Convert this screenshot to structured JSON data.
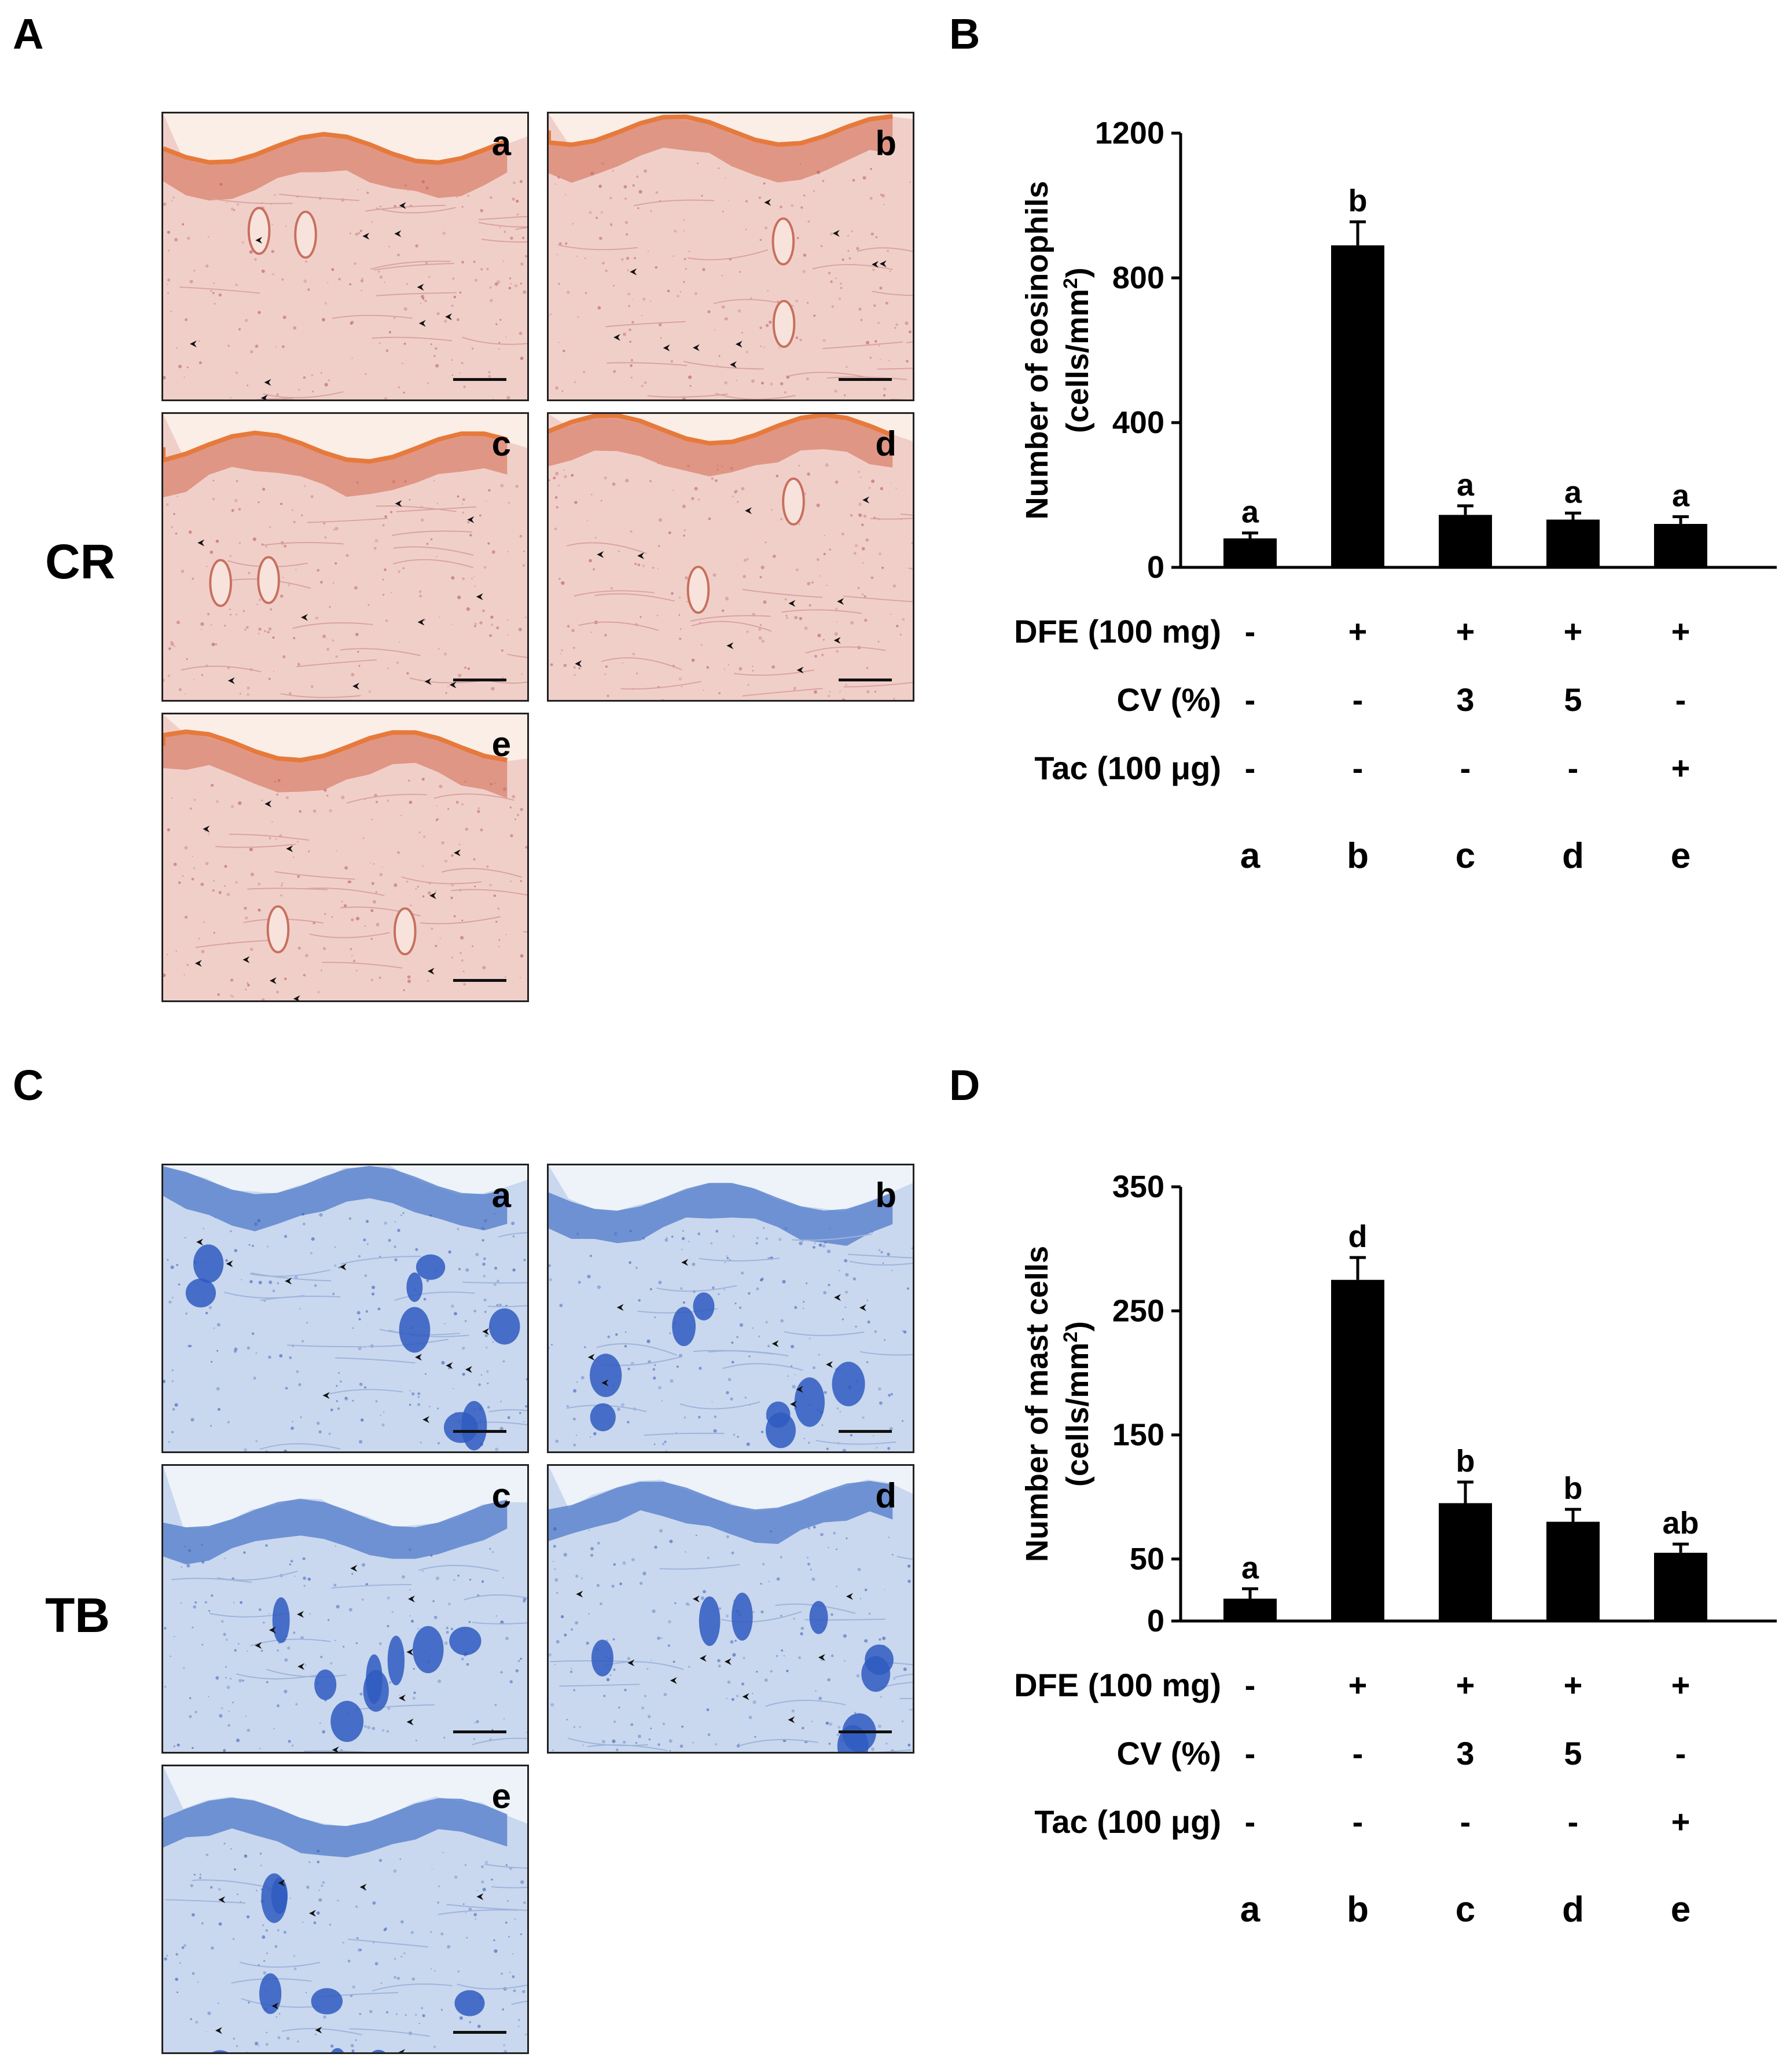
{
  "panels": {
    "A": {
      "letter": "A",
      "stain": "CR"
    },
    "B": {
      "letter": "B"
    },
    "C": {
      "letter": "C",
      "stain": "TB"
    },
    "D": {
      "letter": "D"
    }
  },
  "micrograph_labels": [
    "a",
    "b",
    "c",
    "d",
    "e"
  ],
  "colors": {
    "cr_tissue": "#f1cfc9",
    "cr_epidermis": "#d9836e",
    "cr_cornified": "#e67a3c",
    "cr_background": "#fbeee6",
    "tb_tissue": "#c9d8ee",
    "tb_epidermis": "#4f79c9",
    "tb_follicle": "#2f5bc0",
    "tb_background": "#eef3fa",
    "bar_fill": "#000000"
  },
  "chart_data": [
    {
      "type": "bar",
      "panel": "B",
      "ylabel_line1": "Number of eosinophils",
      "ylabel_line2": "(cells/mm",
      "ylabel_sup": "2",
      "ylabel_close": ")",
      "ylim": [
        0,
        1200
      ],
      "yticks": [
        "0",
        "400",
        "800",
        "1200"
      ],
      "ytick_values": [
        0,
        400,
        800,
        1200
      ],
      "categories": [
        "a",
        "b",
        "c",
        "d",
        "e"
      ],
      "values": [
        80,
        890,
        145,
        132,
        120
      ],
      "errors": [
        15,
        65,
        25,
        18,
        20
      ],
      "significance": [
        "a",
        "b",
        "a",
        "a",
        "a"
      ],
      "treatment_rows": [
        {
          "label": "DFE (100 mg)",
          "values": [
            "-",
            "+",
            "+",
            "+",
            "+"
          ]
        },
        {
          "label": "CV (%)",
          "values": [
            "-",
            "-",
            "3",
            "5",
            "-"
          ]
        },
        {
          "label": "Tac (100 μg)",
          "values": [
            "-",
            "-",
            "-",
            "-",
            "+"
          ]
        }
      ],
      "grid": false
    },
    {
      "type": "bar",
      "panel": "D",
      "ylabel_line1": "Number of mast cells",
      "ylabel_line2": "(cells/mm",
      "ylabel_sup": "2",
      "ylabel_close": ")",
      "ylim": [
        0,
        350
      ],
      "yticks": [
        "0",
        "50",
        "150",
        "250",
        "350"
      ],
      "ytick_values": [
        0,
        50,
        150,
        250,
        350
      ],
      "categories": [
        "a",
        "b",
        "c",
        "d",
        "e"
      ],
      "values": [
        18,
        275,
        95,
        80,
        55
      ],
      "errors": [
        8,
        18,
        17,
        10,
        7
      ],
      "significance": [
        "a",
        "d",
        "b",
        "b",
        "ab"
      ],
      "treatment_rows": [
        {
          "label": "DFE (100 mg)",
          "values": [
            "-",
            "+",
            "+",
            "+",
            "+"
          ]
        },
        {
          "label": "CV (%)",
          "values": [
            "-",
            "-",
            "3",
            "5",
            "-"
          ]
        },
        {
          "label": "Tac (100 μg)",
          "values": [
            "-",
            "-",
            "-",
            "-",
            "+"
          ]
        }
      ],
      "grid": false
    }
  ]
}
